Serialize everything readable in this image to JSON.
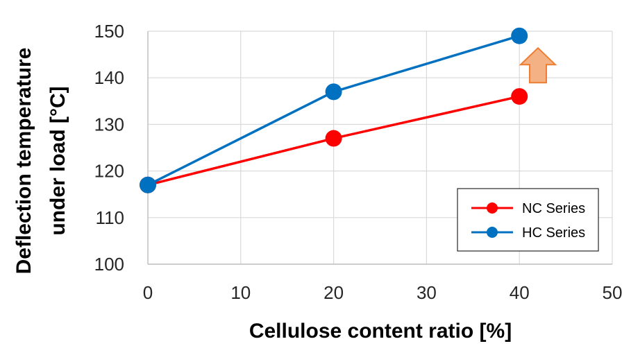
{
  "chart_data": {
    "type": "line",
    "xlabel": "Cellulose content ratio [%]",
    "ylabel_line1": "Deflection temperature",
    "ylabel_line2": "under load [°C]",
    "xlim": [
      0,
      50
    ],
    "ylim": [
      100,
      150
    ],
    "x_ticks": [
      0,
      10,
      20,
      30,
      40,
      50
    ],
    "y_ticks": [
      100,
      110,
      120,
      130,
      140,
      150
    ],
    "grid": true,
    "legend_position": "bottom-right",
    "series": [
      {
        "name": "NC Series",
        "color": "#ff0000",
        "x": [
          0,
          20,
          40
        ],
        "y": [
          117,
          127,
          136
        ]
      },
      {
        "name": "HC Series",
        "color": "#0070c0",
        "x": [
          0,
          20,
          40
        ],
        "y": [
          117,
          137,
          149
        ]
      }
    ],
    "annotations": [
      {
        "type": "up-arrow",
        "x": 42,
        "y": 140,
        "color": "#f4b183",
        "stroke": "#ed7d31"
      }
    ]
  }
}
